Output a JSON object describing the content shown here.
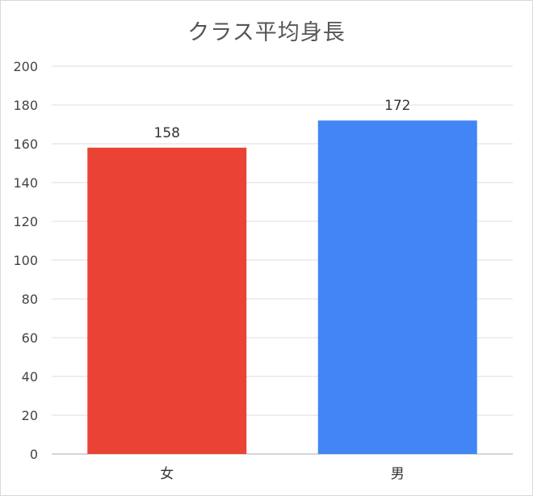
{
  "chart_data": {
    "type": "bar",
    "title": "クラス平均身長",
    "categories": [
      "女",
      "男"
    ],
    "values": [
      158,
      172
    ],
    "colors": [
      "#ea4335",
      "#4285f4"
    ],
    "ylim": [
      0,
      200
    ],
    "yticks": [
      0,
      20,
      40,
      60,
      80,
      100,
      120,
      140,
      160,
      180,
      200
    ],
    "grid": true,
    "legend": "none",
    "data_labels": true
  }
}
